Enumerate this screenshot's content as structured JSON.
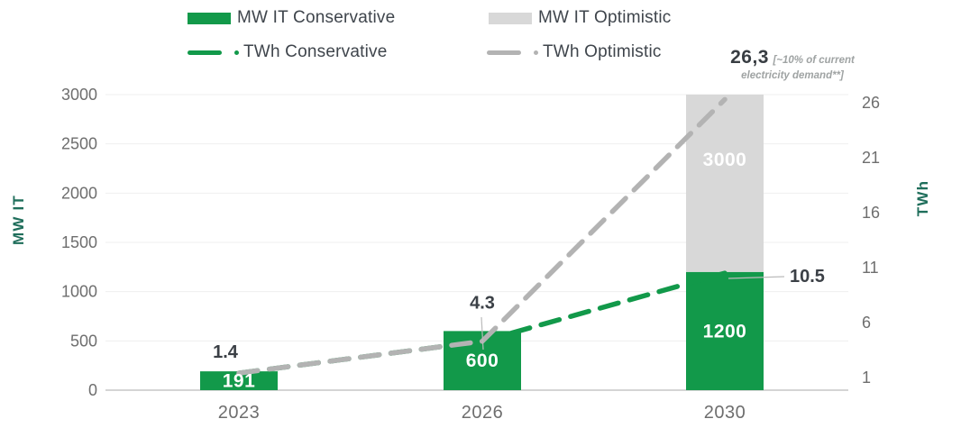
{
  "palette": {
    "green": "#12994a",
    "gray_bar": "#d8d8d8",
    "gray_line": "#b3b3b3",
    "axis_title_color": "#1f6e5b",
    "tick_text_color": "#6e6e6e",
    "dark_label_color": "#3b4046",
    "note_gray": "#9fa3a3"
  },
  "legend": {
    "items": [
      {
        "label": "MW IT Conservative",
        "swatch": "bar",
        "color": "#12994a"
      },
      {
        "label": "MW IT Optimistic",
        "swatch": "bar",
        "color": "#d8d8d8"
      },
      {
        "label": "TWh Conservative",
        "swatch": "line",
        "color": "#12994a"
      },
      {
        "label": "TWh Optimistic",
        "swatch": "line",
        "color": "#b3b3b3"
      }
    ]
  },
  "chart_data": {
    "type": "combo-bar-line",
    "categories": [
      "2023",
      "2026",
      "2030"
    ],
    "series": [
      {
        "name": "MW IT Conservative",
        "type": "bar",
        "axis": "left",
        "color": "#12994a",
        "values": [
          191,
          600,
          1200
        ],
        "bar_labels": [
          "191",
          "600",
          "1200"
        ]
      },
      {
        "name": "MW IT Optimistic",
        "type": "bar",
        "axis": "left",
        "color": "#d8d8d8",
        "values": [
          null,
          null,
          3000
        ],
        "bar_labels": [
          null,
          null,
          "3000"
        ],
        "render": "segment-above-conservative"
      },
      {
        "name": "TWh Conservative",
        "type": "line",
        "dashed": true,
        "axis": "right",
        "color": "#12994a",
        "values": [
          1.4,
          4.3,
          10.5
        ],
        "point_labels": [
          "1.4",
          "4.3",
          "10.5"
        ]
      },
      {
        "name": "TWh Optimistic",
        "type": "line",
        "dashed": true,
        "axis": "right",
        "color": "#b3b3b3",
        "values": [
          1.4,
          4.3,
          26.3
        ],
        "point_labels": [
          null,
          null,
          "26,3"
        ]
      }
    ],
    "left_axis": {
      "title": "MW IT",
      "ticks": [
        0,
        500,
        1000,
        1500,
        2000,
        2500,
        3000
      ],
      "range": [
        0,
        3000
      ]
    },
    "right_axis": {
      "title": "TWh",
      "ticks": [
        1,
        6,
        11,
        16,
        21,
        26
      ],
      "range": [
        1,
        26
      ]
    },
    "annotation": {
      "value": "26,3",
      "note_line1": "[~10% of current",
      "note_line2": "electricity demand**]"
    },
    "grid": "horizontal-on",
    "legend_position": "top"
  }
}
